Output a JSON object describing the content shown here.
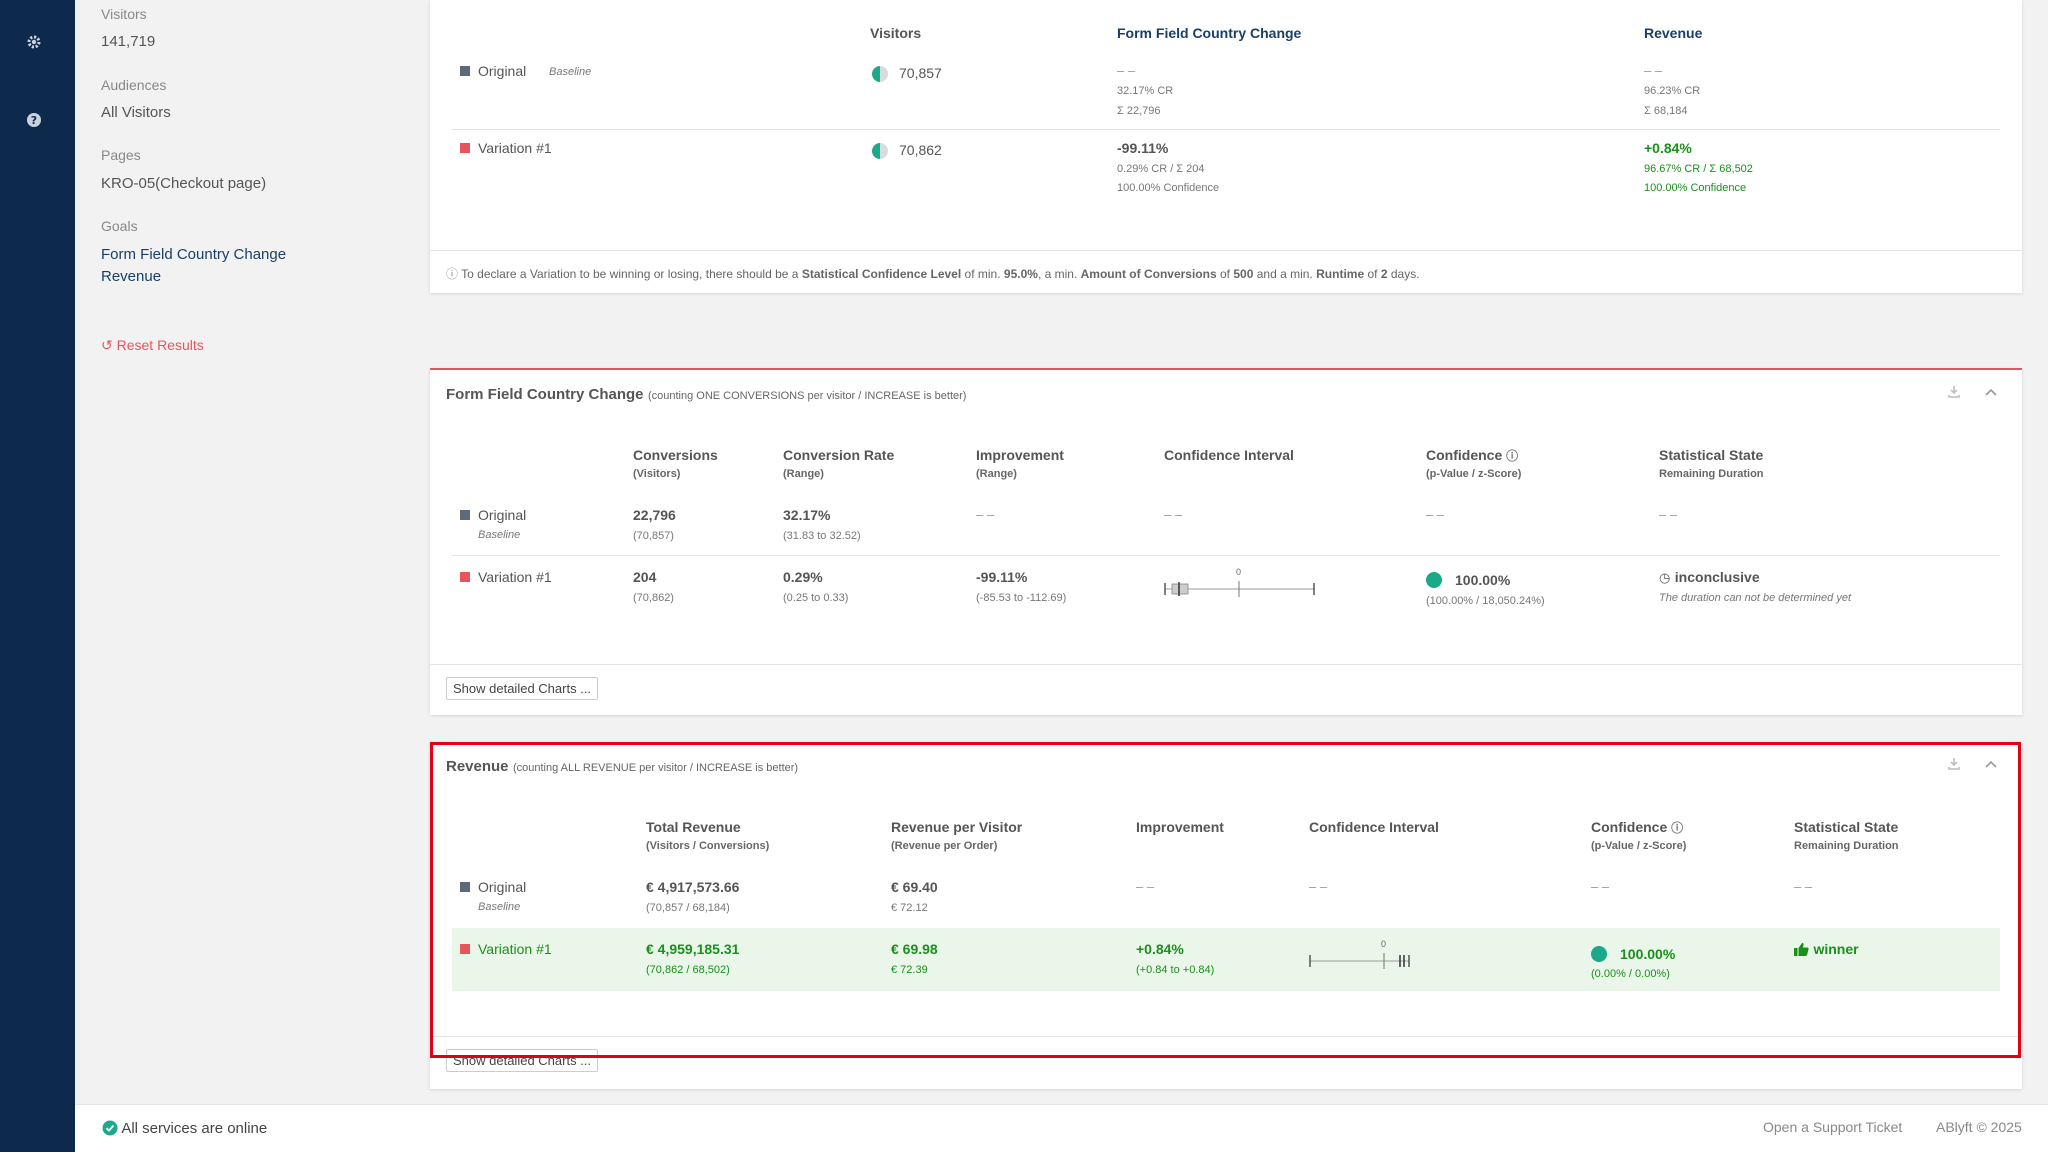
{
  "nav": {
    "icons": [
      "gear-icon",
      "help-icon"
    ]
  },
  "sidebar": {
    "visitors_label": "Visitors",
    "visitors_value": "141,719",
    "audiences_label": "Audiences",
    "audiences_value": "All Visitors",
    "pages_label": "Pages",
    "pages_value": "KRO-05(Checkout page)",
    "goals_label": "Goals",
    "goals": [
      "Form Field Country Change",
      "Revenue"
    ],
    "reset": "Reset Results"
  },
  "summary": {
    "col_visitors": "Visitors",
    "col_goal1": "Form Field Country Change",
    "col_goal2": "Revenue",
    "rows": [
      {
        "name": "Original",
        "baseline": "Baseline",
        "visitors": "70,857",
        "g1_main": "– –",
        "g1_line1": "32.17% CR",
        "g1_line2": "Σ 22,796",
        "g2_main": "– –",
        "g2_line1": "96.23% CR",
        "g2_line2": "Σ 68,184"
      },
      {
        "name": "Variation #1",
        "visitors": "70,862",
        "g1_main": "-99.11%",
        "g1_line1": "0.29% CR / Σ 204",
        "g1_line2": "100.00% Confidence",
        "g2_main": "+0.84%",
        "g2_line1": "96.67% CR / Σ 68,502",
        "g2_line2": "100.00% Confidence"
      }
    ],
    "note_pre": "To declare a Variation to be winning or losing, there should be a",
    "note_b1": "Statistical Confidence Level",
    "note_t1": "of min.",
    "note_b2": "95.0%",
    "note_t2": ", a min.",
    "note_b3": "Amount of Conversions",
    "note_t3": "of",
    "note_b4": "500",
    "note_t4": "and a min.",
    "note_b5": "Runtime",
    "note_t5": "of",
    "note_b6": "2",
    "note_t6": "days."
  },
  "goal1": {
    "title": "Form Field Country Change",
    "subtitle": "(counting ONE CONVERSIONS per visitor / INCREASE is better)",
    "columns": [
      {
        "h": "Conversions",
        "s": "(Visitors)"
      },
      {
        "h": "Conversion Rate",
        "s": "(Range)"
      },
      {
        "h": "Improvement",
        "s": "(Range)"
      },
      {
        "h": "Confidence Interval",
        "s": ""
      },
      {
        "h": "Confidence",
        "s": "(p-Value / z-Score)"
      },
      {
        "h": "Statistical State",
        "s": "Remaining Duration"
      }
    ],
    "original": {
      "name": "Original",
      "baseline": "Baseline",
      "conv": "22,796",
      "conv_sub": "(70,857)",
      "rate": "32.17%",
      "rate_sub": "(31.83 to 32.52)",
      "impr": "– –",
      "ci": "– –",
      "conf": "– –",
      "state": "– –"
    },
    "variation": {
      "name": "Variation #1",
      "conv": "204",
      "conv_sub": "(70,862)",
      "rate": "0.29%",
      "rate_sub": "(0.25 to 0.33)",
      "impr": "-99.11%",
      "impr_sub": "(-85.53 to -112.69)",
      "ci_zero": "0",
      "conf": "100.00%",
      "conf_sub": "(100.00% / 18,050.24%)",
      "state": "inconclusive",
      "state_sub": "The duration can not be determined yet"
    },
    "charts_button": "Show detailed Charts ..."
  },
  "goal2": {
    "title": "Revenue",
    "subtitle": "(counting ALL REVENUE per visitor / INCREASE is better)",
    "columns": [
      {
        "h": "Total Revenue",
        "s": "(Visitors / Conversions)"
      },
      {
        "h": "Revenue per Visitor",
        "s": "(Revenue per Order)"
      },
      {
        "h": "Improvement",
        "s": ""
      },
      {
        "h": "Confidence Interval",
        "s": ""
      },
      {
        "h": "Confidence",
        "s": "(p-Value / z-Score)"
      },
      {
        "h": "Statistical State",
        "s": "Remaining Duration"
      }
    ],
    "original": {
      "name": "Original",
      "baseline": "Baseline",
      "total": "€ 4,917,573.66",
      "total_sub": "(70,857 / 68,184)",
      "rpv": "€ 69.40",
      "rpv_sub": "€ 72.12",
      "impr": "– –",
      "ci": "– –",
      "conf": "– –",
      "state": "– –"
    },
    "variation": {
      "name": "Variation #1",
      "total": "€ 4,959,185.31",
      "total_sub": "(70,862 / 68,502)",
      "rpv": "€ 69.98",
      "rpv_sub": "€ 72.39",
      "impr": "+0.84%",
      "impr_sub": "(+0.84 to +0.84)",
      "ci_zero": "0",
      "conf": "100.00%",
      "conf_sub": "(0.00% / 0.00%)",
      "state": "winner"
    },
    "charts_button": "Show detailed Charts ..."
  },
  "footer": {
    "status": "All services are online",
    "support": "Open a Support Ticket",
    "copyright": "ABlyft © 2025"
  }
}
